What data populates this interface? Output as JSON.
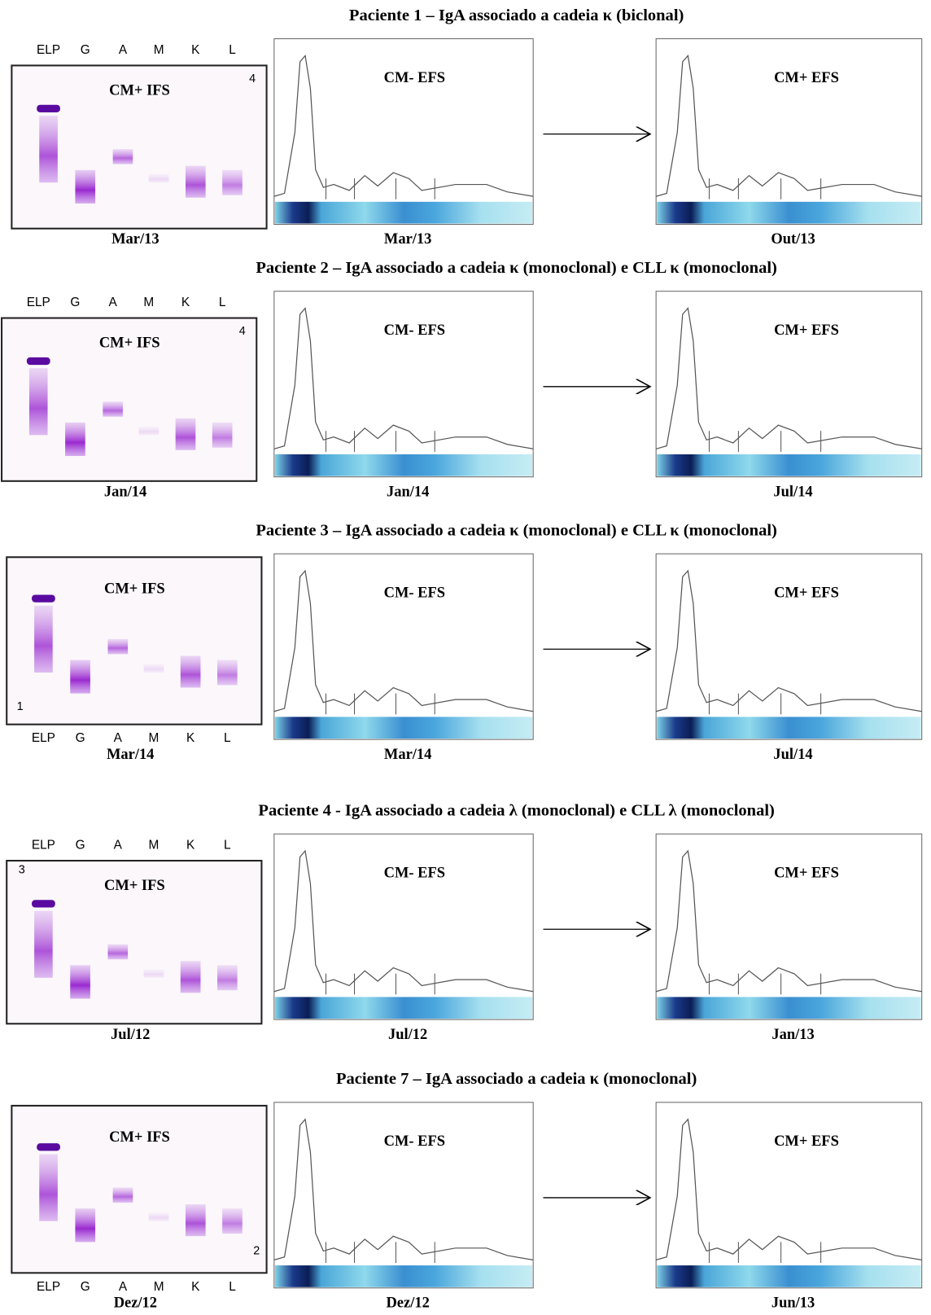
{
  "panels": [
    {
      "title": "Paciente 1 – IgA associado a cadeia κ (biclonal)",
      "gel": {
        "lanes": [
          "ELP",
          "G",
          "A",
          "M",
          "K",
          "L"
        ],
        "label": "CM+ IFS",
        "number": "4",
        "date": "Mar/13"
      },
      "before": {
        "label": "CM- EFS",
        "date": "Mar/13"
      },
      "after": {
        "label": "CM+ EFS",
        "date": "Out/13"
      }
    },
    {
      "title": "Paciente 2 – IgA associado a cadeia κ (monoclonal) e CLL κ (monoclonal)",
      "gel": {
        "lanes": [
          "ELP",
          "G",
          "A",
          "M",
          "K",
          "L"
        ],
        "label": "CM+ IFS",
        "number": "4",
        "date": "Jan/14"
      },
      "before": {
        "label": "CM- EFS",
        "date": "Jan/14"
      },
      "after": {
        "label": "CM+ EFS",
        "date": "Jul/14"
      }
    },
    {
      "title": "Paciente 3 – IgA associado a cadeia κ (monoclonal) e CLL κ (monoclonal)",
      "gel": {
        "lanes": [
          "ELP",
          "G",
          "A",
          "M",
          "K",
          "L"
        ],
        "label": "CM+ IFS",
        "number": "1",
        "date": "Mar/14"
      },
      "before": {
        "label": "CM- EFS",
        "date": "Mar/14"
      },
      "after": {
        "label": "CM+ EFS",
        "date": "Jul/14"
      }
    },
    {
      "title": "Paciente 4 - IgA associado a cadeia λ (monoclonal) e CLL λ (monoclonal)",
      "gel": {
        "lanes": [
          "ELP",
          "G",
          "A",
          "M",
          "K",
          "L"
        ],
        "label": "CM+ IFS",
        "number": "3",
        "date": "Jul/12"
      },
      "before": {
        "label": "CM- EFS",
        "date": "Jul/12"
      },
      "after": {
        "label": "CM+ EFS",
        "date": "Jan/13"
      }
    },
    {
      "title": "Paciente 7 – IgA associado a cadeia κ (monoclonal)",
      "gel": {
        "lanes": [
          "ELP",
          "G",
          "A",
          "M",
          "K",
          "L"
        ],
        "label": "CM+ IFS",
        "number": "2",
        "date": "Dez/12"
      },
      "before": {
        "label": "CM- EFS",
        "date": "Dez/12"
      },
      "after": {
        "label": "CM+ EFS",
        "date": "Jun/13"
      }
    }
  ]
}
